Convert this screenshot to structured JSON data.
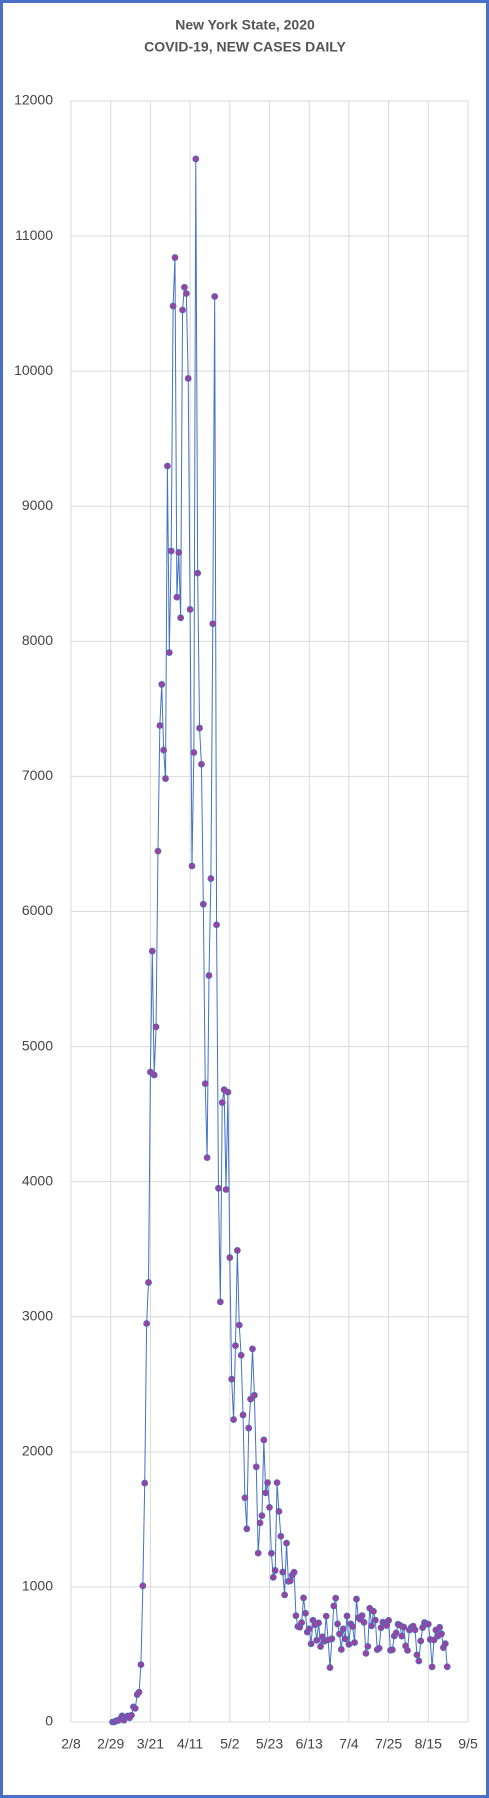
{
  "chart_data": {
    "type": "line",
    "title": "New York State, 2020",
    "subtitle": "COVID-19, NEW CASES DAILY",
    "x": [
      "3/1",
      "3/2",
      "3/3",
      "3/4",
      "3/5",
      "3/6",
      "3/7",
      "3/8",
      "3/9",
      "3/10",
      "3/11",
      "3/12",
      "3/13",
      "3/14",
      "3/15",
      "3/16",
      "3/17",
      "3/18",
      "3/19",
      "3/20",
      "3/21",
      "3/22",
      "3/23",
      "3/24",
      "3/25",
      "3/26",
      "3/27",
      "3/28",
      "3/29",
      "3/30",
      "3/31",
      "4/1",
      "4/2",
      "4/3",
      "4/4",
      "4/5",
      "4/6",
      "4/7",
      "4/8",
      "4/9",
      "4/10",
      "4/11",
      "4/12",
      "4/13",
      "4/14",
      "4/15",
      "4/16",
      "4/17",
      "4/18",
      "4/19",
      "4/20",
      "4/21",
      "4/22",
      "4/23",
      "4/24",
      "4/25",
      "4/26",
      "4/27",
      "4/28",
      "4/29",
      "4/30",
      "5/1",
      "5/2",
      "5/3",
      "5/4",
      "5/5",
      "5/6",
      "5/7",
      "5/8",
      "5/9",
      "5/10",
      "5/11",
      "5/12",
      "5/13",
      "5/14",
      "5/15",
      "5/16",
      "5/17",
      "5/18",
      "5/19",
      "5/20",
      "5/21",
      "5/22",
      "5/23",
      "5/24",
      "5/25",
      "5/26",
      "5/27",
      "5/28",
      "5/29",
      "5/30",
      "5/31",
      "6/1",
      "6/2",
      "6/3",
      "6/4",
      "6/5",
      "6/6",
      "6/7",
      "6/8",
      "6/9",
      "6/10",
      "6/11",
      "6/12",
      "6/13",
      "6/14",
      "6/15",
      "6/16",
      "6/17",
      "6/18",
      "6/19",
      "6/20",
      "6/21",
      "6/22",
      "6/23",
      "6/24",
      "6/25",
      "6/26",
      "6/27",
      "6/28",
      "6/29",
      "6/30",
      "7/1",
      "7/2",
      "7/3",
      "7/4",
      "7/5",
      "7/6",
      "7/7",
      "7/8",
      "7/9",
      "7/10",
      "7/11",
      "7/12",
      "7/13",
      "7/14",
      "7/15",
      "7/16",
      "7/17",
      "7/18",
      "7/19",
      "7/20",
      "7/21",
      "7/22",
      "7/23",
      "7/24",
      "7/25",
      "7/26",
      "7/27",
      "7/28",
      "7/29",
      "7/30",
      "7/31",
      "8/1",
      "8/2",
      "8/3",
      "8/4",
      "8/5",
      "8/6",
      "8/7",
      "8/8",
      "8/9",
      "8/10",
      "8/11",
      "8/12",
      "8/13",
      "8/14",
      "8/15",
      "8/16",
      "8/17",
      "8/18",
      "8/19",
      "8/20",
      "8/21",
      "8/22",
      "8/23",
      "8/24",
      "8/25"
    ],
    "values": [
      0,
      1,
      10,
      11,
      22,
      45,
      13,
      36,
      44,
      31,
      50,
      112,
      101,
      203,
      221,
      425,
      1008,
      1769,
      2950,
      3254,
      4812,
      5707,
      4790,
      5146,
      6447,
      7377,
      7681,
      7195,
      6984,
      9298,
      7917,
      8669,
      10482,
      10841,
      8327,
      8658,
      8174,
      10453,
      10621,
      10575,
      9946,
      8236,
      6337,
      7177,
      11571,
      8505,
      7358,
      7090,
      6054,
      4726,
      4178,
      5526,
      6244,
      8130,
      10553,
      5902,
      3951,
      3110,
      4585,
      4681,
      3942,
      4663,
      3438,
      2538,
      2239,
      2786,
      3491,
      2938,
      2715,
      2273,
      1660,
      1430,
      2176,
      2390,
      2762,
      2419,
      1889,
      1250,
      1474,
      1528,
      2088,
      1696,
      1772,
      1589,
      1249,
      1071,
      1122,
      1772,
      1559,
      1375,
      1110,
      941,
      1324,
      1041,
      1045,
      1087,
      1108,
      787,
      707,
      702,
      736,
      919,
      805,
      666,
      690,
      579,
      753,
      720,
      605,
      734,
      559,
      631,
      598,
      784,
      607,
      403,
      616,
      859,
      917,
      726,
      652,
      537,
      689,
      616,
      785,
      575,
      726,
      707,
      588,
      910,
      772,
      760,
      787,
      738,
      508,
      560,
      842,
      712,
      820,
      754,
      536,
      546,
      698,
      739,
      734,
      715,
      752,
      531,
      535,
      637,
      660,
      723,
      716,
      636,
      703,
      563,
      530,
      680,
      700,
      710,
      682,
      497,
      452,
      600,
      699,
      736,
      726,
      724,
      611,
      408,
      607,
      681,
      636,
      701,
      653,
      551,
      580,
      409
    ],
    "color": "#4472c4",
    "marker_color": "#a0409c",
    "xlim": [
      "2/8",
      "9/5"
    ],
    "xticks": [
      "2/8",
      "2/29",
      "3/21",
      "4/11",
      "5/2",
      "5/23",
      "6/13",
      "7/4",
      "7/25",
      "8/15",
      "9/5"
    ],
    "ylim": [
      0,
      12000
    ],
    "yticks": [
      0,
      1000,
      2000,
      3000,
      4000,
      5000,
      6000,
      7000,
      8000,
      9000,
      10000,
      11000,
      12000
    ],
    "grid": true
  }
}
